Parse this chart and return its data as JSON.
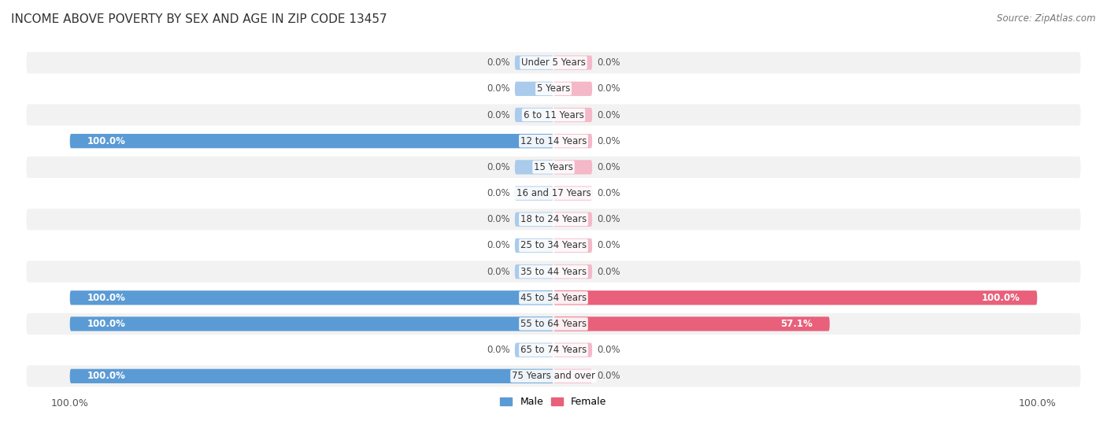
{
  "title": "INCOME ABOVE POVERTY BY SEX AND AGE IN ZIP CODE 13457",
  "source": "Source: ZipAtlas.com",
  "age_groups": [
    "Under 5 Years",
    "5 Years",
    "6 to 11 Years",
    "12 to 14 Years",
    "15 Years",
    "16 and 17 Years",
    "18 to 24 Years",
    "25 to 34 Years",
    "35 to 44 Years",
    "45 to 54 Years",
    "55 to 64 Years",
    "65 to 74 Years",
    "75 Years and over"
  ],
  "male_values": [
    0.0,
    0.0,
    0.0,
    100.0,
    0.0,
    0.0,
    0.0,
    0.0,
    0.0,
    100.0,
    100.0,
    0.0,
    100.0
  ],
  "female_values": [
    0.0,
    0.0,
    0.0,
    0.0,
    0.0,
    0.0,
    0.0,
    0.0,
    0.0,
    100.0,
    57.1,
    0.0,
    0.0
  ],
  "male_color_full": "#5b9bd5",
  "male_color_stub": "#aacbeb",
  "female_color_full": "#e8607a",
  "female_color_stub": "#f4b8c8",
  "male_label": "Male",
  "female_label": "Female",
  "background_color": "#ffffff",
  "row_bg_light": "#f2f2f2",
  "row_bg_white": "#ffffff",
  "xlim": 100,
  "stub_val": 8,
  "title_fontsize": 11,
  "axis_label_fontsize": 9,
  "bar_label_fontsize": 8.5,
  "legend_fontsize": 9,
  "source_fontsize": 8.5
}
